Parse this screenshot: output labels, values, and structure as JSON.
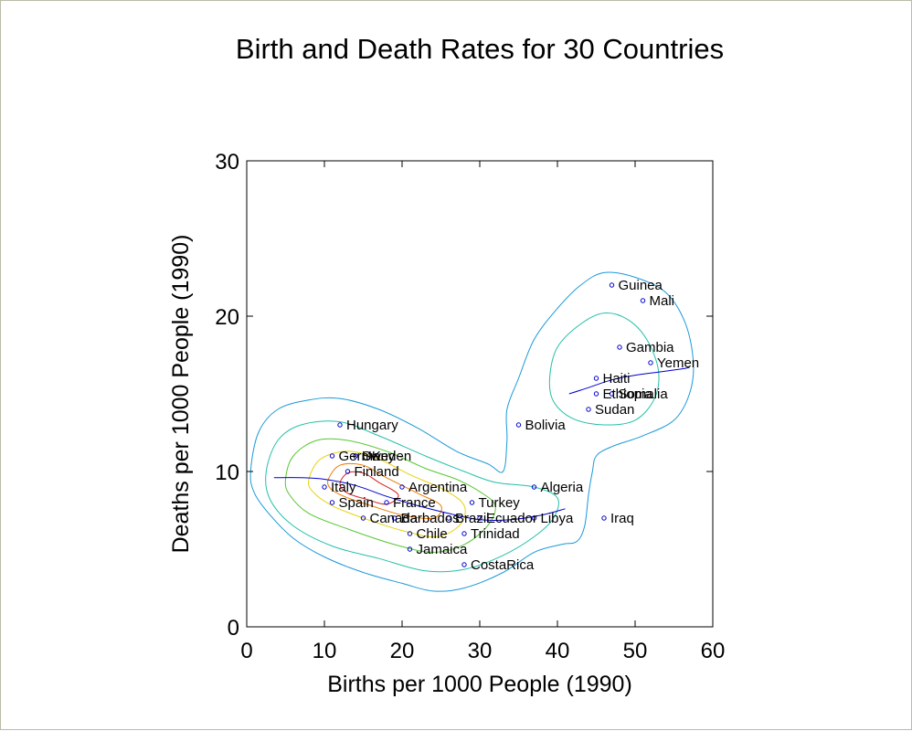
{
  "chart_data": {
    "type": "scatter",
    "title": "Birth and Death Rates for 30 Countries",
    "xlabel": "Births per 1000 People (1990)",
    "ylabel": "Deaths per 1000 People (1990)",
    "xlim": [
      0,
      60
    ],
    "ylim": [
      0,
      30
    ],
    "xticks": [
      0,
      10,
      20,
      30,
      40,
      50,
      60
    ],
    "yticks": [
      0,
      10,
      20,
      30
    ],
    "grid": false,
    "points": [
      {
        "label": "Guinea",
        "x": 47,
        "y": 22
      },
      {
        "label": "Mali",
        "x": 51,
        "y": 21
      },
      {
        "label": "Gambia",
        "x": 48,
        "y": 18
      },
      {
        "label": "Yemen",
        "x": 52,
        "y": 17
      },
      {
        "label": "Haiti",
        "x": 45,
        "y": 16
      },
      {
        "label": "Ethiopia",
        "x": 45,
        "y": 15
      },
      {
        "label": "Somalia",
        "x": 47,
        "y": 15
      },
      {
        "label": "Sudan",
        "x": 44,
        "y": 14
      },
      {
        "label": "Bolivia",
        "x": 35,
        "y": 13
      },
      {
        "label": "Hungary",
        "x": 12,
        "y": 13
      },
      {
        "label": "Germany",
        "x": 11,
        "y": 11
      },
      {
        "label": "UK",
        "x": 14,
        "y": 11
      },
      {
        "label": "Sweden",
        "x": 14,
        "y": 11
      },
      {
        "label": "Finland",
        "x": 13,
        "y": 10
      },
      {
        "label": "Argentina",
        "x": 20,
        "y": 9
      },
      {
        "label": "Italy",
        "x": 10,
        "y": 9
      },
      {
        "label": "Algeria",
        "x": 37,
        "y": 9
      },
      {
        "label": "Spain",
        "x": 11,
        "y": 8
      },
      {
        "label": "France",
        "x": 18,
        "y": 8
      },
      {
        "label": "Turkey",
        "x": 29,
        "y": 8
      },
      {
        "label": "Canada",
        "x": 15,
        "y": 7
      },
      {
        "label": "Barbados",
        "x": 19,
        "y": 7
      },
      {
        "label": "Brazil",
        "x": 26,
        "y": 7
      },
      {
        "label": "Ecuador",
        "x": 30,
        "y": 7
      },
      {
        "label": "Libya",
        "x": 37,
        "y": 7
      },
      {
        "label": "Iraq",
        "x": 46,
        "y": 7
      },
      {
        "label": "Chile",
        "x": 21,
        "y": 6
      },
      {
        "label": "Jamaica",
        "x": 21,
        "y": 5
      },
      {
        "label": "Trinidad",
        "x": 28,
        "y": 6
      },
      {
        "label": "CostaRica",
        "x": 28,
        "y": 4
      }
    ],
    "contours": [
      {
        "color": "#1a99d9",
        "closed": true,
        "pts": [
          [
            0.5,
            10
          ],
          [
            1.5,
            12.5
          ],
          [
            4,
            14
          ],
          [
            8,
            14.6
          ],
          [
            12,
            14.7
          ],
          [
            17,
            14
          ],
          [
            22,
            12.8
          ],
          [
            27,
            11.3
          ],
          [
            31,
            10.5
          ],
          [
            33,
            10
          ],
          [
            33.5,
            12
          ],
          [
            33.5,
            14
          ],
          [
            35,
            16
          ],
          [
            37,
            18.5
          ],
          [
            40,
            20.5
          ],
          [
            43,
            22
          ],
          [
            46,
            22.8
          ],
          [
            50,
            22.5
          ],
          [
            54,
            21.5
          ],
          [
            56.5,
            19.5
          ],
          [
            57.5,
            17
          ],
          [
            57,
            15
          ],
          [
            55,
            13.3
          ],
          [
            51,
            12.3
          ],
          [
            47,
            11.6
          ],
          [
            45,
            11
          ],
          [
            44.5,
            10
          ],
          [
            44,
            8.5
          ],
          [
            43.5,
            6.5
          ],
          [
            42.5,
            5.5
          ],
          [
            40.5,
            5.3
          ],
          [
            37,
            4.8
          ],
          [
            33,
            3.5
          ],
          [
            28,
            2.5
          ],
          [
            24,
            2.3
          ],
          [
            20,
            2.8
          ],
          [
            15,
            3.5
          ],
          [
            10,
            4.5
          ],
          [
            6,
            5.7
          ],
          [
            3,
            7.2
          ],
          [
            1,
            8.6
          ]
        ]
      },
      {
        "color": "#24c0a8",
        "closed": true,
        "pts": [
          [
            2.5,
            10
          ],
          [
            4,
            12
          ],
          [
            7,
            13
          ],
          [
            12,
            13.2
          ],
          [
            17,
            12.3
          ],
          [
            23,
            11
          ],
          [
            28,
            10
          ],
          [
            32,
            9.3
          ],
          [
            37,
            9
          ],
          [
            40,
            8.3
          ],
          [
            39.5,
            7
          ],
          [
            37,
            5.8
          ],
          [
            33,
            4.6
          ],
          [
            28,
            3.7
          ],
          [
            23,
            3.6
          ],
          [
            17,
            4.4
          ],
          [
            11,
            5.2
          ],
          [
            6,
            6.5
          ],
          [
            3,
            8.2
          ]
        ]
      },
      {
        "color": "#24c0a8",
        "closed": true,
        "pts": [
          [
            39,
            16
          ],
          [
            40,
            18
          ],
          [
            43,
            19.5
          ],
          [
            46,
            20.2
          ],
          [
            49,
            19.8
          ],
          [
            51.5,
            18.5
          ],
          [
            53,
            16.5
          ],
          [
            52.5,
            14.7
          ],
          [
            50,
            13.3
          ],
          [
            46,
            13
          ],
          [
            42,
            13.4
          ],
          [
            39.5,
            14.5
          ]
        ]
      },
      {
        "color": "#55c831",
        "closed": true,
        "pts": [
          [
            5,
            9.5
          ],
          [
            6,
            11
          ],
          [
            9,
            12
          ],
          [
            13,
            12
          ],
          [
            18,
            11.3
          ],
          [
            23,
            10.2
          ],
          [
            27,
            9.5
          ],
          [
            30,
            8.7
          ],
          [
            32,
            7.8
          ],
          [
            31,
            6.5
          ],
          [
            28,
            5.3
          ],
          [
            24,
            4.8
          ],
          [
            19,
            5.3
          ],
          [
            13,
            6.3
          ],
          [
            8,
            7.3
          ],
          [
            5.5,
            8.5
          ]
        ]
      },
      {
        "color": "#e8d10b",
        "closed": true,
        "pts": [
          [
            8,
            9.5
          ],
          [
            9.5,
            10.8
          ],
          [
            13,
            11.3
          ],
          [
            17,
            10.8
          ],
          [
            21,
            9.8
          ],
          [
            25.5,
            8.8
          ],
          [
            28,
            7.8
          ],
          [
            27.5,
            6.6
          ],
          [
            24.5,
            5.8
          ],
          [
            20,
            6.2
          ],
          [
            15,
            7
          ],
          [
            11,
            7.8
          ],
          [
            8.5,
            8.7
          ]
        ]
      },
      {
        "color": "#ee7a00",
        "closed": true,
        "pts": [
          [
            10.5,
            9.5
          ],
          [
            12,
            10.4
          ],
          [
            15,
            10.4
          ],
          [
            18,
            9.6
          ],
          [
            22,
            8.6
          ],
          [
            25,
            7.8
          ],
          [
            24,
            7
          ],
          [
            20,
            7.2
          ],
          [
            16,
            7.8
          ],
          [
            12.5,
            8.4
          ],
          [
            10.8,
            8.9
          ]
        ]
      },
      {
        "color": "#d42020",
        "closed": true,
        "pts": [
          [
            12,
            9.2
          ],
          [
            13,
            9.9
          ],
          [
            15,
            9.9
          ],
          [
            17,
            9.3
          ],
          [
            19.5,
            8.5
          ],
          [
            18,
            7.9
          ],
          [
            15.5,
            8.2
          ],
          [
            13,
            8.6
          ]
        ]
      },
      {
        "color": "#0000cc",
        "closed": false,
        "pts": [
          [
            3.5,
            9.6
          ],
          [
            7,
            9.6
          ],
          [
            10,
            9.5
          ],
          [
            14,
            9.1
          ],
          [
            18,
            8.4
          ],
          [
            22,
            7.8
          ],
          [
            26,
            7.3
          ],
          [
            30,
            6.9
          ],
          [
            34,
            6.9
          ],
          [
            38,
            7.2
          ],
          [
            41,
            7.6
          ]
        ]
      },
      {
        "color": "#0000cc",
        "closed": false,
        "pts": [
          [
            41.5,
            15
          ],
          [
            44,
            15.4
          ],
          [
            47,
            15.9
          ],
          [
            50,
            16.2
          ],
          [
            53,
            16.4
          ],
          [
            56,
            16.6
          ],
          [
            57,
            16.7
          ]
        ]
      }
    ]
  }
}
